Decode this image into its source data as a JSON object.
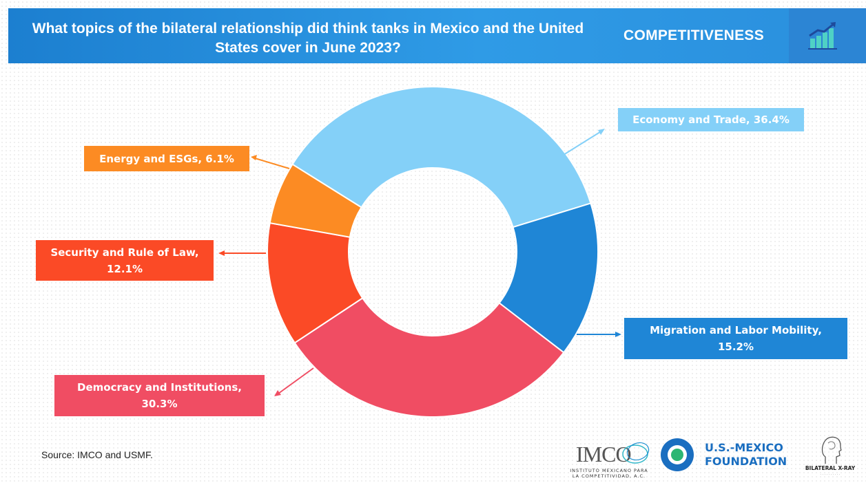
{
  "header": {
    "title": "What topics of the bilateral relationship did think tanks in Mexico and the United States cover in June 2023?",
    "section": "COMPETITIVENESS"
  },
  "chart_data": {
    "type": "pie",
    "donut": true,
    "title": "What topics of the bilateral relationship did think tanks in Mexico and the United States cover in June 2023?",
    "slices": [
      {
        "label": "Economy and Trade, 36.4%",
        "value": 36.4,
        "color": "#84d0f8"
      },
      {
        "label": "Migration and Labor Mobility, 15.2%",
        "value": 15.2,
        "color": "#1f86d6"
      },
      {
        "label": "Democracy and Institutions, 30.3%",
        "value": 30.3,
        "color": "#f04d63"
      },
      {
        "label": "Security and Rule of Law, 12.1%",
        "value": 12.1,
        "color": "#fb4a26"
      },
      {
        "label": "Energy and ESGs, 6.1%",
        "value": 6.1,
        "color": "#fc8b23"
      }
    ]
  },
  "labels": {
    "economy": "Economy and Trade, 36.4%",
    "migration_line1": "Migration and Labor Mobility,",
    "migration_line2": "15.2%",
    "democracy_line1": "Democracy and Institutions,",
    "democracy_line2": "30.3%",
    "security_line1": "Security and Rule of Law,",
    "security_line2": "12.1%",
    "energy": "Energy and ESGs, 6.1%"
  },
  "footer": {
    "source": "Source: IMCO and USMF.",
    "imco_logo": "IMCO",
    "imco_sub_line1": "INSTITUTO MEXICANO PARA",
    "imco_sub_line2": "LA COMPETITIVIDAD, A.C.",
    "usmf_line1": "U.S.-MEXICO",
    "usmf_line2": "FOUNDATION",
    "xray": "BILATERAL X-RAY"
  },
  "icons": {
    "header_icon": "bar-chart-growth-icon",
    "usmf_icon": "circle-logo-icon",
    "xray_icon": "head-profile-icon"
  }
}
